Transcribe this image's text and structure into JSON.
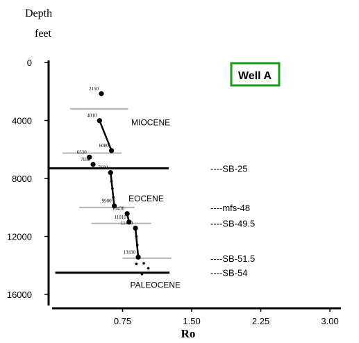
{
  "chart_data": {
    "type": "scatter",
    "y_title_line1": "Depth",
    "y_title_line2": "feet",
    "xlabel": "Ro",
    "badge": "Well A",
    "badge_color": "#1a9e1a",
    "xlim": [
      0.0,
      3.12
    ],
    "ylim": [
      0,
      16000
    ],
    "y_inverted": true,
    "x_ticks": [
      {
        "value": 0.75,
        "label": "0.75"
      },
      {
        "value": 1.5,
        "label": "1.50"
      },
      {
        "value": 2.25,
        "label": "2.25"
      },
      {
        "value": 3.0,
        "label": "3.00"
      }
    ],
    "y_ticks": [
      {
        "value": 0,
        "label": "0"
      },
      {
        "value": 4000,
        "label": "4000"
      },
      {
        "value": 8000,
        "label": "8000"
      },
      {
        "value": 12000,
        "label": "12000"
      },
      {
        "value": 16000,
        "label": "16000"
      }
    ],
    "points": [
      {
        "x": 0.52,
        "y": 2150,
        "label": "2150"
      },
      {
        "x": 0.5,
        "y": 4010,
        "label": "4010"
      },
      {
        "x": 0.63,
        "y": 6080,
        "label": "6080"
      },
      {
        "x": 0.39,
        "y": 6530,
        "label": "6530"
      },
      {
        "x": 0.43,
        "y": 7030,
        "label": "7030"
      },
      {
        "x": 0.62,
        "y": 7600,
        "label": "7600"
      },
      {
        "x": 0.63,
        "y": 8200,
        "label": ""
      },
      {
        "x": 0.64,
        "y": 8700,
        "label": ""
      },
      {
        "x": 0.65,
        "y": 9300,
        "label": ""
      },
      {
        "x": 0.66,
        "y": 9900,
        "label": "9900"
      },
      {
        "x": 0.8,
        "y": 10430,
        "label": "10430"
      },
      {
        "x": 0.82,
        "y": 11010,
        "label": "11010"
      },
      {
        "x": 0.89,
        "y": 11430,
        "label": "11430"
      },
      {
        "x": 0.9,
        "y": 12000,
        "label": ""
      },
      {
        "x": 0.91,
        "y": 12600,
        "label": ""
      },
      {
        "x": 0.92,
        "y": 13430,
        "label": "13430"
      },
      {
        "x": 0.9,
        "y": 13900,
        "label": ""
      },
      {
        "x": 0.98,
        "y": 13850,
        "label": ""
      },
      {
        "x": 1.03,
        "y": 14200,
        "label": ""
      },
      {
        "x": 0.96,
        "y": 14600,
        "label": ""
      }
    ],
    "trend_lines": [
      {
        "x1": 0.5,
        "y1": 4010,
        "x2": 0.63,
        "y2": 6080
      },
      {
        "x1": 0.62,
        "y1": 7600,
        "x2": 0.66,
        "y2": 9900
      },
      {
        "x1": 0.8,
        "y1": 10430,
        "x2": 0.82,
        "y2": 11010
      },
      {
        "x1": 0.89,
        "y1": 11430,
        "x2": 0.92,
        "y2": 13430
      }
    ],
    "boundaries": [
      {
        "depth": 7300,
        "x_start": -0.05,
        "x_end": 1.25,
        "style": "major",
        "label": "----SB-25"
      },
      {
        "depth": 10000,
        "x_start": 0.28,
        "x_end": 0.88,
        "style": "minor",
        "label": "----mfs-48"
      },
      {
        "depth": 11100,
        "x_start": 0.41,
        "x_end": 1.06,
        "style": "minor",
        "label": "----SB-49.5"
      },
      {
        "depth": 13500,
        "x_start": 0.75,
        "x_end": 1.28,
        "style": "minor",
        "label": "----SB-51.5"
      },
      {
        "depth": 14500,
        "x_start": 0.02,
        "x_end": 1.26,
        "style": "major",
        "label": "----SB-54"
      },
      {
        "depth": 3200,
        "x_start": 0.18,
        "x_end": 0.81,
        "style": "minor",
        "label": ""
      },
      {
        "depth": 6250,
        "x_start": 0.1,
        "x_end": 0.74,
        "style": "minor",
        "label": ""
      }
    ],
    "epochs": [
      {
        "label": "MIOCENE",
        "x": 0.83,
        "depth": 4150
      },
      {
        "label": "EOCENE",
        "x": 0.78,
        "depth": 9400
      },
      {
        "label": "PALEOCENE",
        "x": 0.88,
        "depth": 15350
      }
    ],
    "grid": false,
    "legend": "none"
  }
}
